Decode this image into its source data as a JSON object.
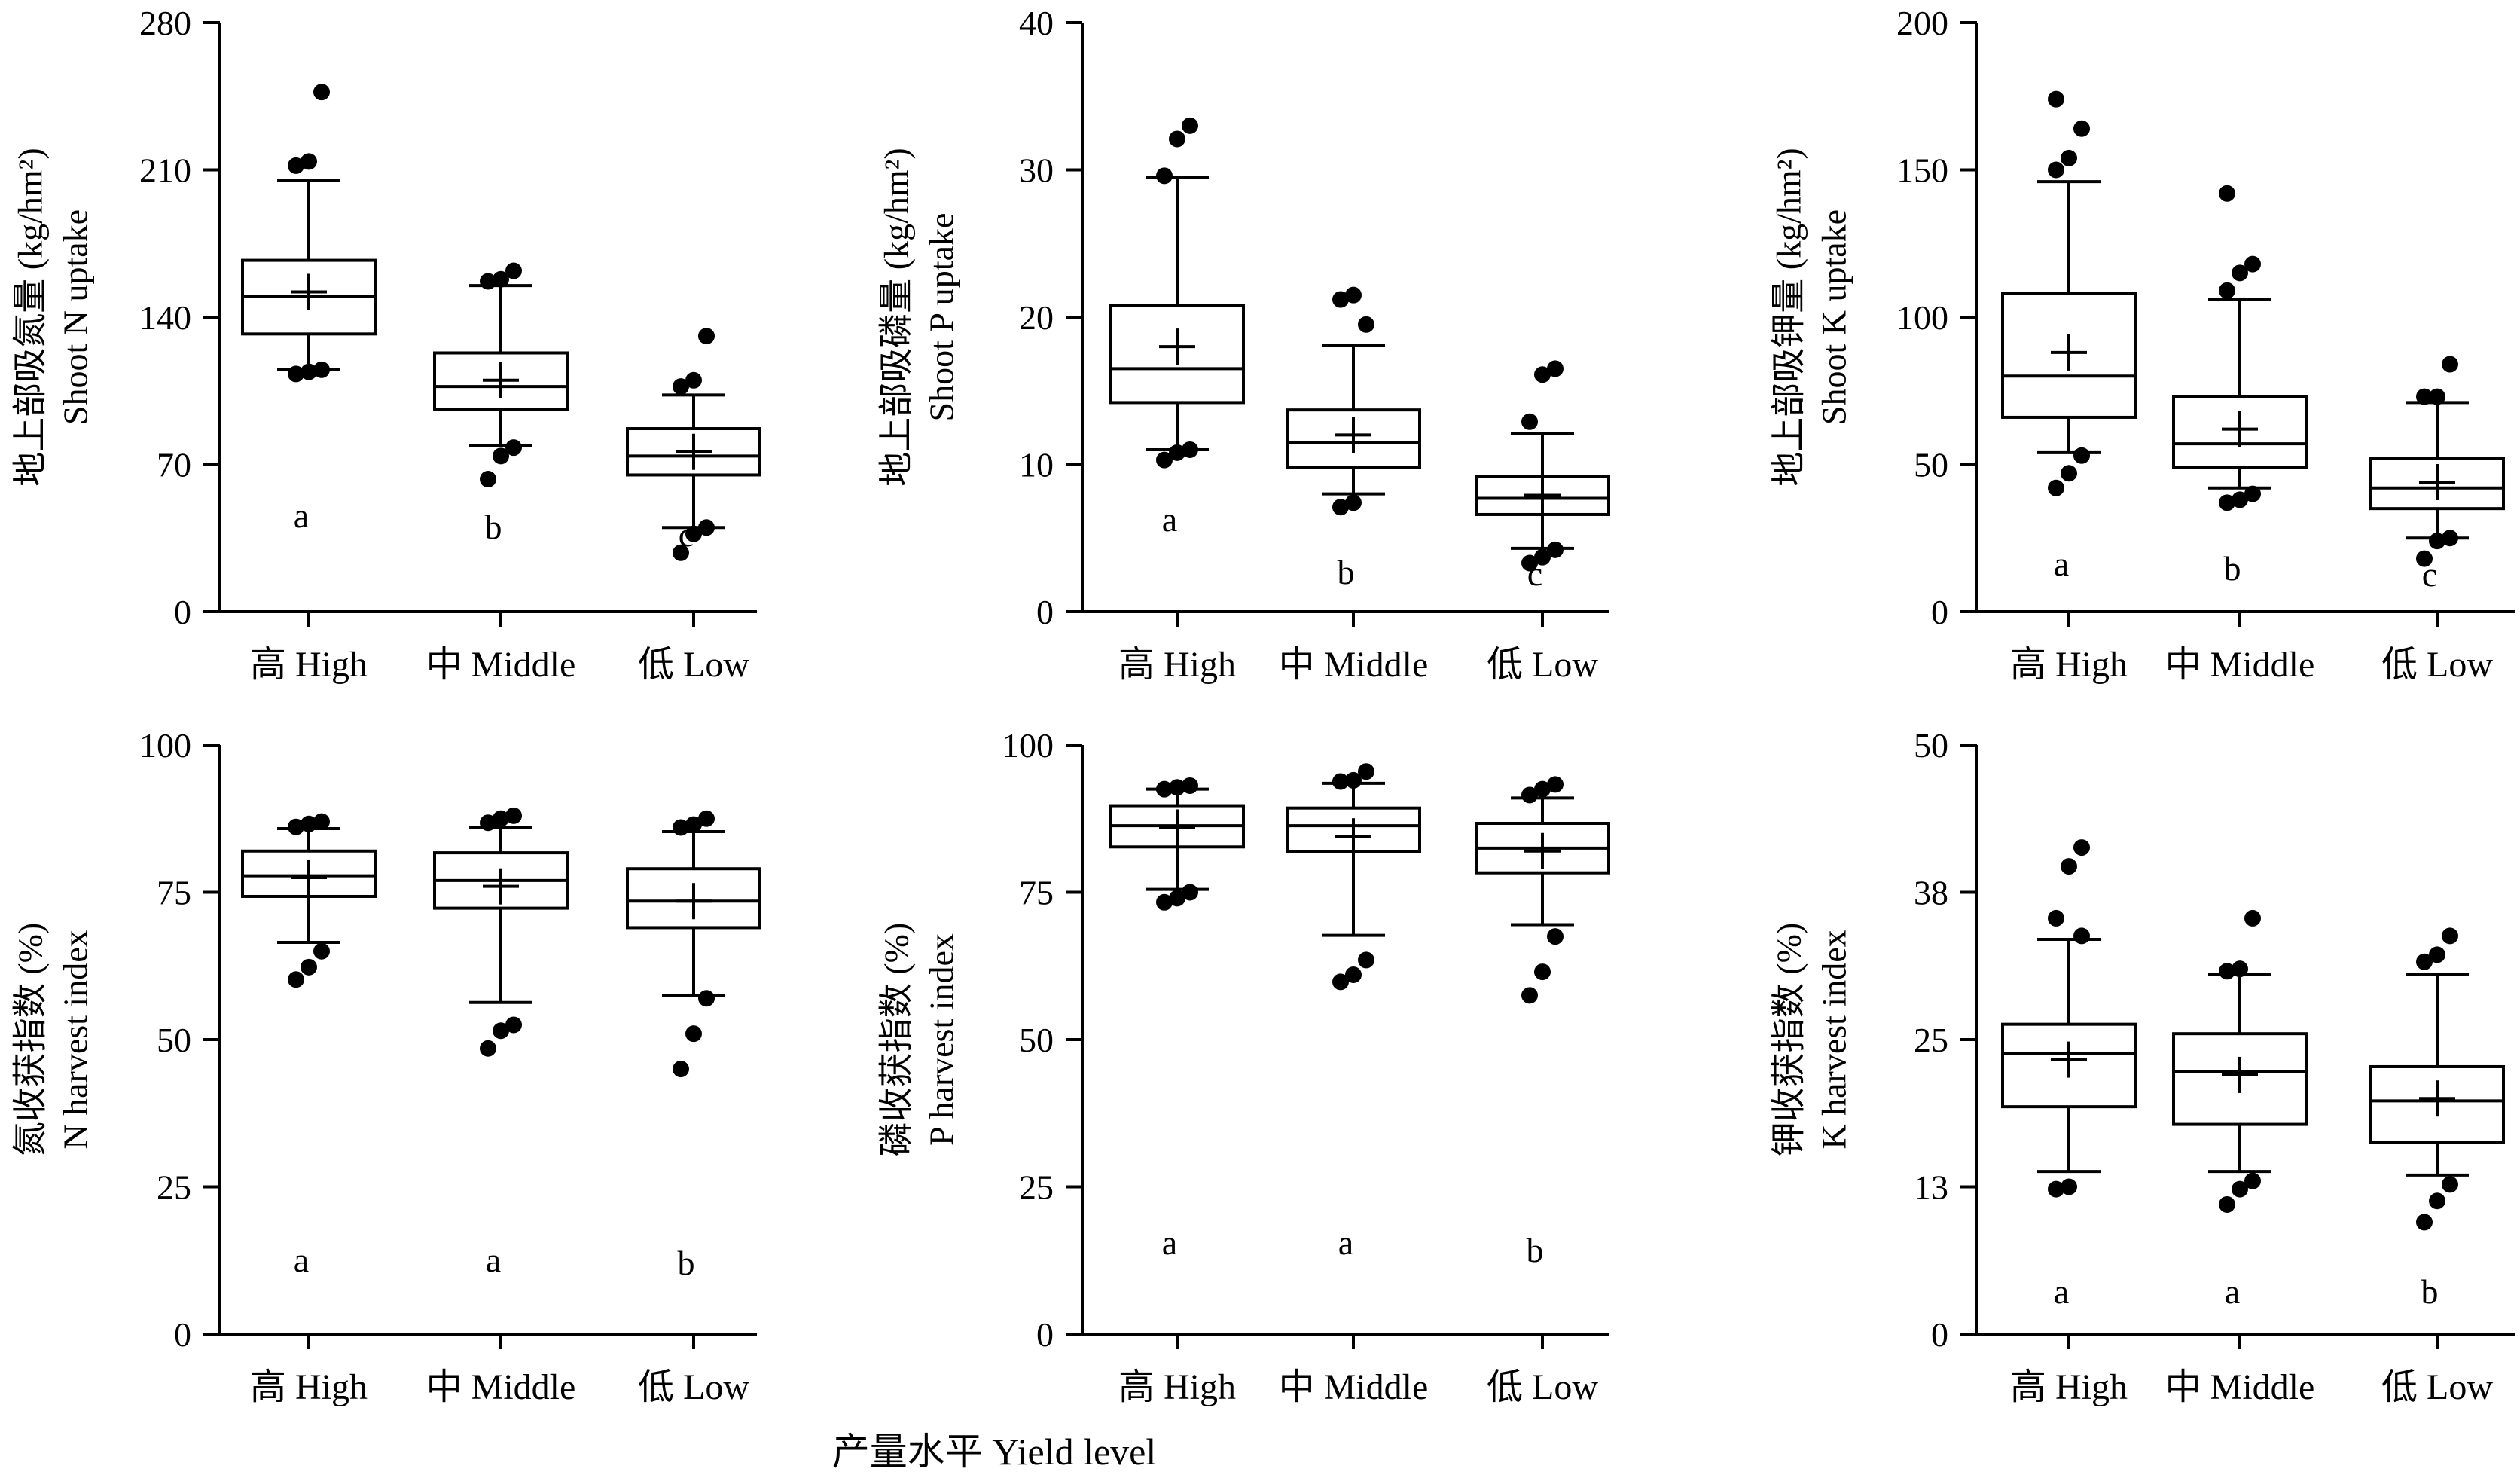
{
  "figure": {
    "shared_xlabel": "产量水平 Yield level"
  },
  "chart_data": [
    {
      "type": "box",
      "ylabel_cn": "地上部吸氮量 (kg/hm²)",
      "ylabel_en": "Shoot N uptake",
      "ylim": [
        0,
        280
      ],
      "yticks": [
        0,
        70,
        140,
        210,
        280
      ],
      "tick_labels": [
        "0",
        "70",
        "140",
        "210",
        "280"
      ],
      "categories": [
        "高 High",
        "中 Middle",
        "低 Low"
      ],
      "boxes": [
        {
          "q1": 132,
          "median": 150,
          "q3": 167,
          "mean": 152,
          "whisker_low": 115,
          "whisker_high": 205,
          "outliers": [
            113,
            114,
            115,
            212,
            214,
            247
          ]
        },
        {
          "q1": 96,
          "median": 107,
          "q3": 123,
          "mean": 110,
          "whisker_low": 79,
          "whisker_high": 155,
          "outliers": [
            63,
            74,
            78,
            157,
            158,
            162
          ]
        },
        {
          "q1": 65,
          "median": 74,
          "q3": 87,
          "mean": 76,
          "whisker_low": 40,
          "whisker_high": 103,
          "outliers": [
            28,
            37,
            40,
            107,
            110,
            131
          ]
        }
      ],
      "letters": [
        "a",
        "b",
        "c"
      ]
    },
    {
      "type": "box",
      "ylabel_cn": "地上部吸磷量 (kg/hm²)",
      "ylabel_en": "Shoot P uptake",
      "ylim": [
        0,
        40
      ],
      "yticks": [
        0,
        10,
        20,
        30,
        40
      ],
      "tick_labels": [
        "0",
        "10",
        "20",
        "30",
        "40"
      ],
      "categories": [
        "高 High",
        "中 Middle",
        "低 Low"
      ],
      "boxes": [
        {
          "q1": 14.2,
          "median": 16.5,
          "q3": 20.8,
          "mean": 18.0,
          "whisker_low": 11.0,
          "whisker_high": 29.5,
          "outliers": [
            10.3,
            10.8,
            11.0,
            29.6,
            32.1,
            33.0
          ]
        },
        {
          "q1": 9.8,
          "median": 11.5,
          "q3": 13.7,
          "mean": 12.0,
          "whisker_low": 8.0,
          "whisker_high": 18.1,
          "outliers": [
            7.1,
            7.4,
            19.5,
            21.2,
            21.5
          ]
        },
        {
          "q1": 6.6,
          "median": 7.7,
          "q3": 9.2,
          "mean": 7.9,
          "whisker_low": 4.3,
          "whisker_high": 12.1,
          "outliers": [
            3.3,
            3.7,
            4.2,
            12.9,
            16.1,
            16.5
          ]
        }
      ],
      "letters": [
        "a",
        "b",
        "c"
      ]
    },
    {
      "type": "box",
      "ylabel_cn": "地上部吸钾量 (kg/hm²)",
      "ylabel_en": "Shoot K uptake",
      "ylim": [
        0,
        200
      ],
      "yticks": [
        0,
        50,
        100,
        150,
        200
      ],
      "tick_labels": [
        "0",
        "50",
        "100",
        "150",
        "200"
      ],
      "categories": [
        "高 High",
        "中 Middle",
        "低 Low"
      ],
      "boxes": [
        {
          "q1": 66,
          "median": 80,
          "q3": 108,
          "mean": 88,
          "whisker_low": 54,
          "whisker_high": 146,
          "outliers": [
            42,
            47,
            53,
            150,
            154,
            164,
            174
          ]
        },
        {
          "q1": 49,
          "median": 57,
          "q3": 73,
          "mean": 62,
          "whisker_low": 42,
          "whisker_high": 106,
          "outliers": [
            37,
            38,
            40,
            109,
            115,
            118,
            142
          ]
        },
        {
          "q1": 35,
          "median": 42,
          "q3": 52,
          "mean": 44,
          "whisker_low": 25,
          "whisker_high": 71,
          "outliers": [
            18,
            24,
            25,
            73,
            73,
            84
          ]
        }
      ],
      "letters": [
        "a",
        "b",
        "c"
      ]
    },
    {
      "type": "box",
      "ylabel_cn": "氮收获指数 (%)",
      "ylabel_en": "N harvest index",
      "ylim": [
        0,
        100
      ],
      "yticks": [
        0,
        25,
        50,
        75,
        100
      ],
      "tick_labels": [
        "0",
        "25",
        "50",
        "75",
        "100"
      ],
      "categories": [
        "高 High",
        "中 Middle",
        "低 Low"
      ],
      "boxes": [
        {
          "q1": 74.3,
          "median": 77.8,
          "q3": 82.0,
          "mean": 77.5,
          "whisker_low": 66.5,
          "whisker_high": 85.8,
          "outliers": [
            60.2,
            62.3,
            65.0,
            86.1,
            86.6,
            87.0
          ]
        },
        {
          "q1": 72.3,
          "median": 77.0,
          "q3": 81.7,
          "mean": 76.0,
          "whisker_low": 56.3,
          "whisker_high": 86.0,
          "outliers": [
            48.5,
            51.5,
            52.5,
            86.8,
            87.5,
            88.0
          ]
        },
        {
          "q1": 69.0,
          "median": 73.5,
          "q3": 79.0,
          "mean": 73.5,
          "whisker_low": 57.5,
          "whisker_high": 85.3,
          "outliers": [
            45.0,
            51.0,
            57.0,
            86.0,
            86.5,
            87.5
          ]
        }
      ],
      "letters": [
        "a",
        "a",
        "b"
      ]
    },
    {
      "type": "box",
      "ylabel_cn": "磷收获指数 (%)",
      "ylabel_en": "P harvest index",
      "ylim": [
        0,
        100
      ],
      "yticks": [
        0,
        25,
        50,
        75,
        100
      ],
      "tick_labels": [
        "0",
        "25",
        "50",
        "75",
        "100"
      ],
      "categories": [
        "高 High",
        "中 Middle",
        "低 Low"
      ],
      "boxes": [
        {
          "q1": 82.7,
          "median": 86.3,
          "q3": 89.7,
          "mean": 86.0,
          "whisker_low": 75.5,
          "whisker_high": 92.5,
          "outliers": [
            73.3,
            74.0,
            75.0,
            92.5,
            92.8,
            93.1
          ]
        },
        {
          "q1": 81.9,
          "median": 86.3,
          "q3": 89.3,
          "mean": 84.5,
          "whisker_low": 67.7,
          "whisker_high": 93.5,
          "outliers": [
            59.8,
            61.0,
            63.5,
            93.8,
            94.0,
            95.5
          ]
        },
        {
          "q1": 78.3,
          "median": 82.5,
          "q3": 86.7,
          "mean": 82.0,
          "whisker_low": 69.5,
          "whisker_high": 91.0,
          "outliers": [
            57.5,
            61.5,
            67.5,
            91.5,
            92.5,
            93.3
          ]
        }
      ],
      "letters": [
        "a",
        "a",
        "b"
      ]
    },
    {
      "type": "box",
      "ylabel_cn": "钾收获指数 (%)",
      "ylabel_en": "K harvest index",
      "ylim": [
        0,
        50
      ],
      "yticks": [
        0,
        12.5,
        25,
        37.5,
        50
      ],
      "tick_labels": [
        "0",
        "13",
        "25",
        "38",
        "50"
      ],
      "categories": [
        "高 High",
        "中 Middle",
        "低 Low"
      ],
      "boxes": [
        {
          "q1": 19.3,
          "median": 23.8,
          "q3": 26.3,
          "mean": 23.3,
          "whisker_low": 13.8,
          "whisker_high": 33.5,
          "outliers": [
            12.3,
            12.5,
            33.8,
            35.3,
            39.7,
            41.3
          ]
        },
        {
          "q1": 17.8,
          "median": 22.3,
          "q3": 25.5,
          "mean": 22.0,
          "whisker_low": 13.8,
          "whisker_high": 30.5,
          "outliers": [
            11.0,
            12.3,
            13.0,
            30.8,
            31.0,
            35.3
          ]
        },
        {
          "q1": 16.3,
          "median": 19.8,
          "q3": 22.7,
          "mean": 20.0,
          "whisker_low": 13.5,
          "whisker_high": 30.5,
          "outliers": [
            9.5,
            11.3,
            12.7,
            31.6,
            32.2,
            33.8
          ]
        }
      ],
      "letters": [
        "a",
        "a",
        "b"
      ]
    }
  ]
}
